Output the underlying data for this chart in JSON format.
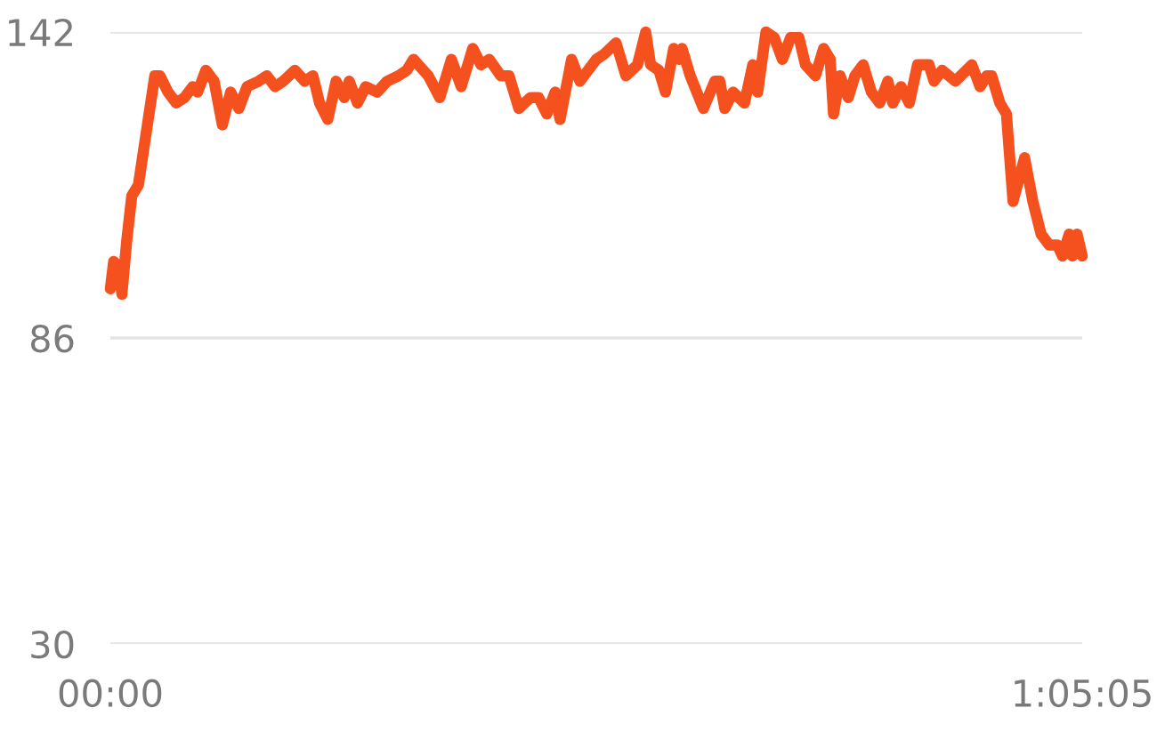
{
  "chart_data": {
    "type": "line",
    "color": "#f4511e",
    "grid": "y",
    "legend": false,
    "marker": "none",
    "line_style": "solid",
    "ylim": [
      30,
      142
    ],
    "yticks": [
      30,
      86,
      142
    ],
    "xlim": [
      0,
      1.0847
    ],
    "xticks": [
      {
        "value": 0,
        "label": "00:00"
      },
      {
        "value": 1.0847,
        "label": "1:05:05"
      }
    ],
    "x": [
      0,
      0.0037,
      0.0092,
      0.0129,
      0.0184,
      0.0239,
      0.0313,
      0.0404,
      0.0496,
      0.0552,
      0.0643,
      0.0735,
      0.0827,
      0.0919,
      0.0974,
      0.1066,
      0.1158,
      0.125,
      0.1342,
      0.1434,
      0.1526,
      0.1655,
      0.1747,
      0.1839,
      0.193,
      0.2059,
      0.2169,
      0.2261,
      0.2335,
      0.2427,
      0.2519,
      0.2611,
      0.2666,
      0.2758,
      0.285,
      0.2978,
      0.3089,
      0.3217,
      0.3309,
      0.3383,
      0.3438,
      0.3548,
      0.3677,
      0.3806,
      0.3916,
      0.4045,
      0.4137,
      0.4229,
      0.4357,
      0.4449,
      0.4559,
      0.4688,
      0.478,
      0.4872,
      0.4964,
      0.5019,
      0.5148,
      0.524,
      0.5332,
      0.5424,
      0.5515,
      0.5644,
      0.5754,
      0.5883,
      0.5975,
      0.603,
      0.6122,
      0.6196,
      0.6288,
      0.6343,
      0.638,
      0.6472,
      0.6619,
      0.6747,
      0.6802,
      0.6858,
      0.695,
      0.7078,
      0.717,
      0.7225,
      0.7317,
      0.7409,
      0.7501,
      0.7593,
      0.7685,
      0.7758,
      0.7869,
      0.7961,
      0.8034,
      0.8071,
      0.8144,
      0.8236,
      0.831,
      0.8402,
      0.8494,
      0.8586,
      0.8678,
      0.8733,
      0.8825,
      0.8917,
      0.9009,
      0.9137,
      0.9193,
      0.9284,
      0.9431,
      0.9615,
      0.9707,
      0.9781,
      0.9836,
      0.9928,
      1.0001,
      1.0075,
      1.0204,
      1.0296,
      1.0388,
      1.0479,
      1.0571,
      1.0627,
      1.0701,
      1.0737,
      1.079,
      1.0847
    ],
    "values": [
      95,
      100,
      99,
      94,
      104,
      112,
      114,
      124,
      134,
      134,
      131,
      129,
      130,
      132,
      131,
      135,
      133,
      125,
      131,
      128,
      132,
      133,
      134,
      132,
      133,
      135,
      133,
      134,
      129,
      126,
      133,
      130,
      133,
      129,
      132,
      131,
      133,
      134,
      135,
      137,
      136,
      134,
      130,
      137,
      132,
      139,
      136,
      137,
      134,
      134,
      128,
      130,
      130,
      127,
      131,
      126,
      137,
      133,
      135,
      137,
      138,
      140,
      134,
      136,
      142,
      136,
      135,
      131,
      139,
      137,
      139,
      134,
      128,
      133,
      133,
      128,
      131,
      129,
      136,
      131,
      142,
      141,
      137,
      141,
      141,
      136,
      134,
      139,
      137,
      127,
      134,
      130,
      134,
      136,
      131,
      129,
      133,
      129,
      132,
      129,
      136,
      136,
      133,
      135,
      133,
      136,
      132,
      134,
      134,
      129,
      127,
      111,
      119,
      111,
      105,
      103,
      103,
      101,
      105,
      101,
      105,
      101
    ]
  }
}
